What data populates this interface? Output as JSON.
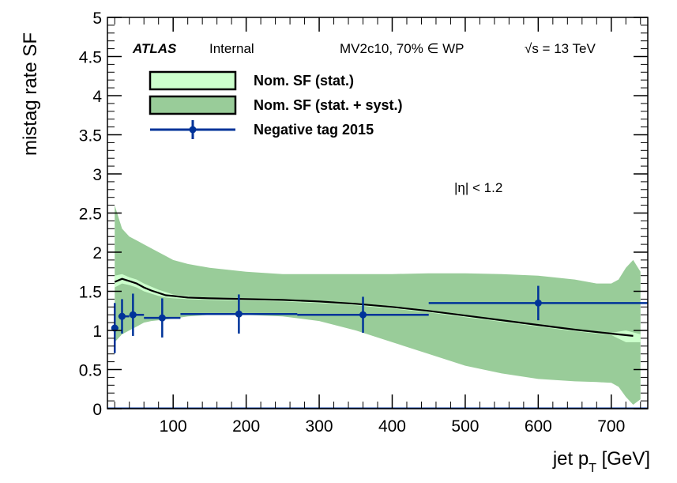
{
  "chart_data": {
    "type": "line",
    "xlabel": "jet p",
    "xlabel_sub": "T",
    "xlabel_unit": " [GeV]",
    "ylabel": "mistag rate SF",
    "xlim": [
      10,
      750
    ],
    "ylim": [
      0,
      5
    ],
    "x_ticks": [
      100,
      200,
      300,
      400,
      500,
      600,
      700
    ],
    "y_ticks": [
      0,
      0.5,
      1,
      1.5,
      2,
      2.5,
      3,
      3.5,
      4,
      4.5,
      5
    ],
    "y_tick_labels": [
      "0",
      "0.5",
      "1",
      "1.5",
      "2",
      "2.5",
      "3",
      "3.5",
      "4",
      "4.5",
      "5"
    ],
    "annotations": {
      "experiment": "ATLAS",
      "status": "Internal",
      "tagger": "MV2c10, 70% ∈ WP",
      "energy": "√s = 13 TeV",
      "region": "|η| < 1.2"
    },
    "legend": {
      "position": "top-left",
      "entries": [
        "Nom. SF (stat.)",
        "Nom. SF (stat. + syst.)",
        "Negative tag 2015"
      ]
    },
    "colors": {
      "stat_band": "#ccffcc",
      "syst_band": "#99cc99",
      "nominal_line": "#000000",
      "points": "#003399"
    },
    "series": [
      {
        "name": "Nom. SF (stat. + syst.)",
        "kind": "band",
        "x": [
          20,
          30,
          40,
          50,
          60,
          70,
          80,
          90,
          100,
          120,
          150,
          200,
          250,
          300,
          350,
          400,
          450,
          500,
          550,
          600,
          650,
          680,
          700,
          710,
          720,
          730,
          740
        ],
        "low": [
          0.85,
          0.95,
          1.0,
          1.05,
          1.1,
          1.12,
          1.13,
          1.14,
          1.15,
          1.18,
          1.2,
          1.2,
          1.18,
          1.12,
          1.0,
          0.85,
          0.7,
          0.55,
          0.45,
          0.38,
          0.35,
          0.34,
          0.33,
          0.28,
          0.15,
          0.05,
          0.12
        ],
        "high": [
          2.6,
          2.3,
          2.2,
          2.15,
          2.1,
          2.05,
          2.0,
          1.95,
          1.9,
          1.85,
          1.8,
          1.75,
          1.72,
          1.72,
          1.72,
          1.72,
          1.73,
          1.73,
          1.72,
          1.7,
          1.65,
          1.6,
          1.6,
          1.65,
          1.8,
          1.9,
          1.75
        ]
      },
      {
        "name": "Nom. SF (stat.)",
        "kind": "band",
        "x": [
          20,
          30,
          40,
          50,
          60,
          70,
          80,
          90,
          100,
          120,
          150,
          200,
          250,
          300,
          350,
          400,
          450,
          500,
          550,
          600,
          650,
          700,
          720,
          740
        ],
        "low": [
          1.55,
          1.6,
          1.58,
          1.55,
          1.5,
          1.47,
          1.44,
          1.42,
          1.41,
          1.4,
          1.39,
          1.38,
          1.37,
          1.35,
          1.32,
          1.28,
          1.23,
          1.17,
          1.11,
          1.05,
          0.99,
          0.94,
          0.85,
          0.85
        ],
        "high": [
          1.7,
          1.72,
          1.68,
          1.65,
          1.6,
          1.56,
          1.52,
          1.49,
          1.46,
          1.44,
          1.42,
          1.41,
          1.4,
          1.38,
          1.35,
          1.31,
          1.26,
          1.2,
          1.14,
          1.08,
          1.02,
          0.97,
          1.0,
          0.95
        ]
      },
      {
        "name": "Nominal SF",
        "kind": "line",
        "x": [
          20,
          30,
          40,
          50,
          60,
          70,
          80,
          90,
          100,
          120,
          150,
          200,
          250,
          300,
          350,
          400,
          450,
          500,
          550,
          600,
          650,
          700,
          730
        ],
        "y": [
          1.62,
          1.66,
          1.63,
          1.6,
          1.55,
          1.51,
          1.48,
          1.45,
          1.44,
          1.42,
          1.41,
          1.4,
          1.39,
          1.37,
          1.34,
          1.3,
          1.25,
          1.19,
          1.13,
          1.07,
          1.01,
          0.96,
          0.93
        ]
      },
      {
        "name": "Negative tag 2015",
        "kind": "points",
        "x": [
          20,
          30,
          45,
          85,
          190,
          360,
          600
        ],
        "xlow": [
          20,
          25,
          40,
          60,
          110,
          270,
          450
        ],
        "xhigh": [
          25,
          40,
          60,
          110,
          270,
          450,
          750
        ],
        "y": [
          1.03,
          1.18,
          1.2,
          1.16,
          1.21,
          1.2,
          1.35
        ],
        "y_err": [
          0.32,
          0.22,
          0.27,
          0.25,
          0.25,
          0.23,
          0.22
        ]
      }
    ]
  }
}
